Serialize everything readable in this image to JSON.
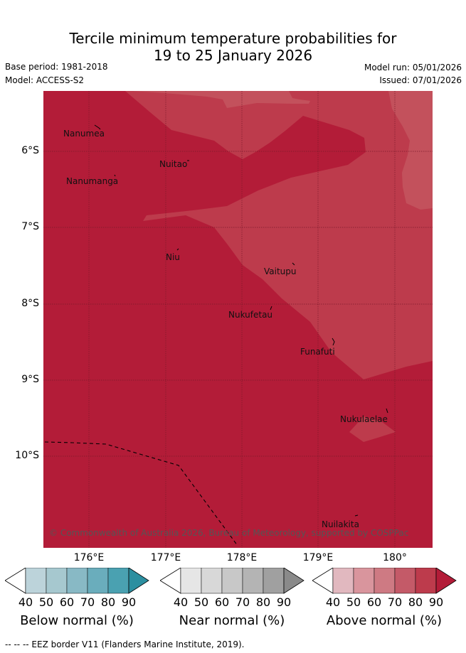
{
  "header": {
    "title_line1": "Tercile minimum temperature probabilities for",
    "title_line2": "19 to 25 January 2026",
    "base_period": "Base period: 1981-2018",
    "model": "Model: ACCESS-S2",
    "model_run": "Model run: 05/01/2026",
    "issued": "Issued: 07/01/2026"
  },
  "map": {
    "lat_labels": [
      "6°S",
      "7°S",
      "8°S",
      "9°S",
      "10°S"
    ],
    "lon_labels": [
      "176°E",
      "177°E",
      "178°E",
      "179°E",
      "180°"
    ],
    "islands": [
      "Nanumea",
      "Nuitao",
      "Nanumanga",
      "Niu",
      "Vaitupu",
      "Nukufetau",
      "Funafuti",
      "Nukulaelae",
      "Nuilakita"
    ],
    "copyright": "© Commonwealth of Australia 2026, Bureau of Meteorology, supported by COSPPac",
    "colors": {
      "above_80": "#b31c38",
      "above_70": "#bd3b4c",
      "above_60": "#c3515c"
    }
  },
  "colorbars": [
    {
      "title": "Below normal (%)",
      "ticks": [
        "40",
        "50",
        "60",
        "70",
        "80",
        "90"
      ],
      "colors": [
        "#ffffff",
        "#bcd3da",
        "#a6c8cf",
        "#88b9c5",
        "#6aadbc",
        "#4aa1b1",
        "#2c8fa0"
      ]
    },
    {
      "title": "Near normal (%)",
      "ticks": [
        "40",
        "50",
        "60",
        "70",
        "80",
        "90"
      ],
      "colors": [
        "#ffffff",
        "#e6e6e6",
        "#d8d8d8",
        "#c8c8c8",
        "#b4b4b4",
        "#a0a0a0",
        "#8a8a8a"
      ]
    },
    {
      "title": "Above normal (%)",
      "ticks": [
        "40",
        "50",
        "60",
        "70",
        "80",
        "90"
      ],
      "colors": [
        "#ffffff",
        "#e1b8bf",
        "#d9959d",
        "#ce7a83",
        "#c45a68",
        "#bd3b4c",
        "#b31c38"
      ]
    }
  ],
  "footer": {
    "eez_note": "--  --  -- EEZ border V11 (Flanders Marine Institute, 2019)."
  }
}
